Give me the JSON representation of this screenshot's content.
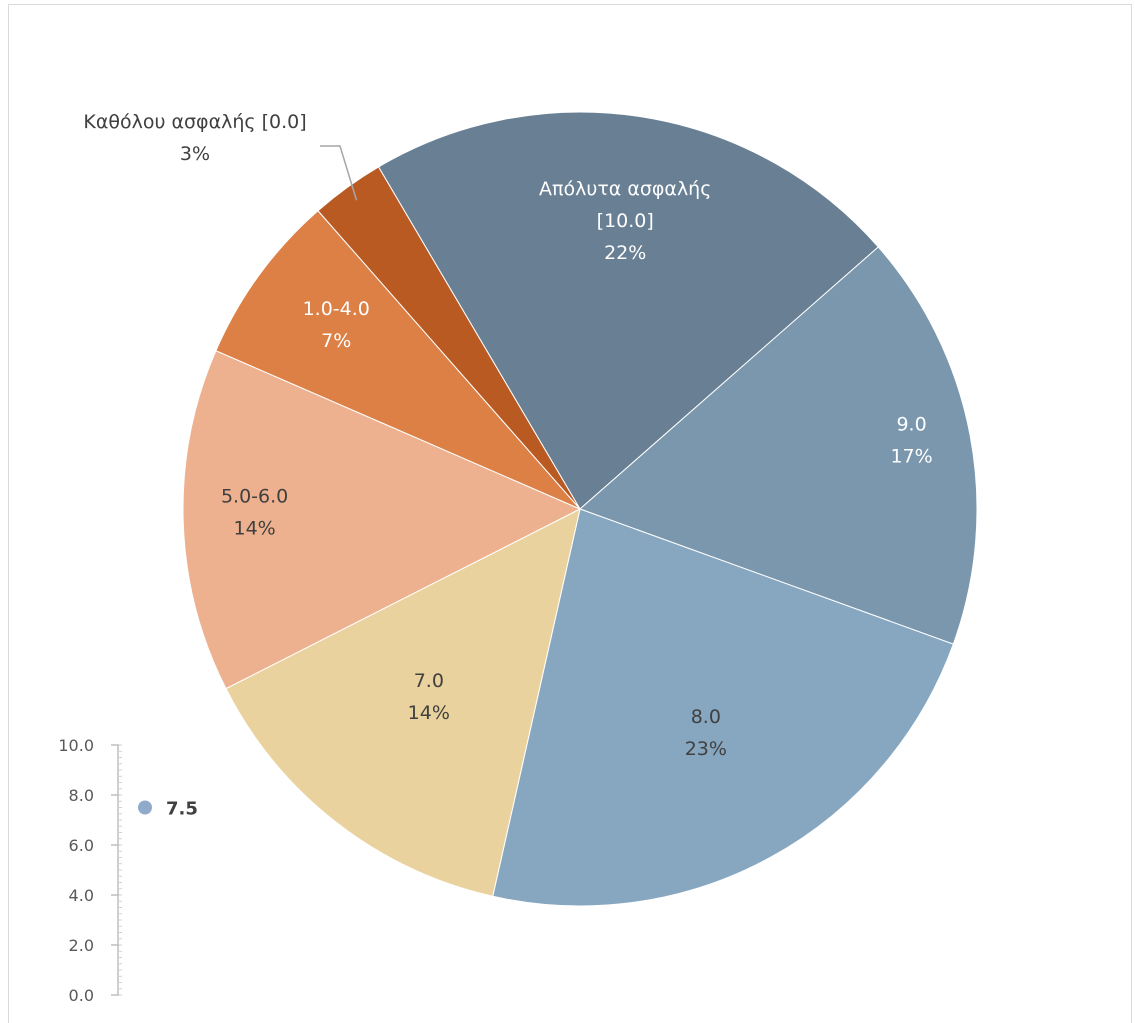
{
  "chart_data": [
    {
      "type": "pie",
      "title": "",
      "slices": [
        {
          "label": "Απόλυτα ασφαλής [10.0]",
          "label_lines": [
            "Απόλυτα ασφαλής",
            "[10.0]"
          ],
          "percent_label": "22%",
          "value": 22,
          "color": "#687F94",
          "text_color": "#ffffff"
        },
        {
          "label": "9.0",
          "label_lines": [
            "9.0"
          ],
          "percent_label": "17%",
          "value": 17,
          "color": "#7A97AD",
          "text_color": "#ffffff"
        },
        {
          "label": "8.0",
          "label_lines": [
            "8.0"
          ],
          "percent_label": "23%",
          "value": 23,
          "color": "#87A7C1",
          "text_color": "#404040"
        },
        {
          "label": "7.0",
          "label_lines": [
            "7.0"
          ],
          "percent_label": "14%",
          "value": 14,
          "color": "#E9D29D",
          "text_color": "#404040"
        },
        {
          "label": "5.0-6.0",
          "label_lines": [
            "5.0-6.0"
          ],
          "percent_label": "14%",
          "value": 14,
          "color": "#EDB18F",
          "text_color": "#404040"
        },
        {
          "label": "1.0-4.0",
          "label_lines": [
            "1.0-4.0"
          ],
          "percent_label": "7%",
          "value": 7,
          "color": "#DD8046",
          "text_color": "#ffffff"
        },
        {
          "label": "Καθόλου ασφαλής [0.0]",
          "label_lines": [
            "Καθόλου ασφαλής [0.0]"
          ],
          "percent_label": "3%",
          "value": 3,
          "color": "#B95A22",
          "text_color": "#404040"
        }
      ]
    },
    {
      "type": "scatter",
      "title": "",
      "ylim": [
        0,
        10
      ],
      "yticks": [
        "0.0",
        "2.0",
        "4.0",
        "6.0",
        "8.0",
        "10.0"
      ],
      "points": [
        {
          "y": 7.5,
          "label": "7.5",
          "color": "#8FAACB"
        }
      ]
    }
  ]
}
